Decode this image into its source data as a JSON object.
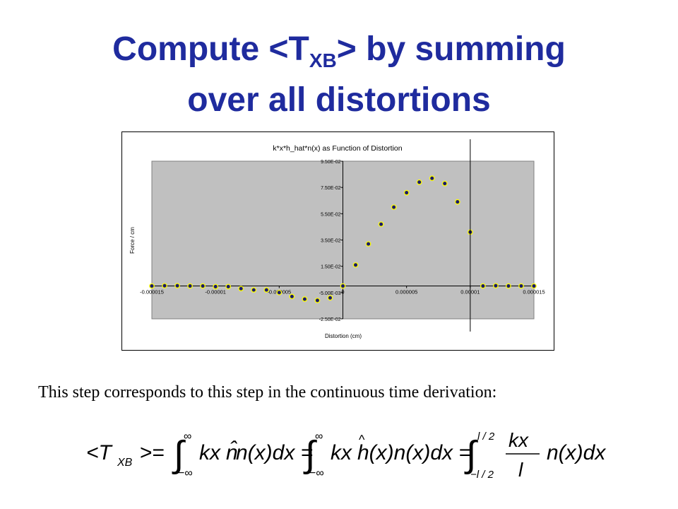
{
  "slide": {
    "title_prefix": "Compute <T",
    "title_sub": "XB",
    "title_suffix": "> by summing",
    "title_line2": "over all distortions",
    "caption": "This step corresponds to this step in the continuous time derivation:"
  },
  "chart_data": {
    "type": "scatter",
    "title": "k*x*h_hat*n(x) as Function of Distortion",
    "xlabel": "Distortion (cm)",
    "ylabel": "Force / cm",
    "xlim": [
      -1.5e-05,
      1.5e-05
    ],
    "ylim": [
      -0.025,
      0.095
    ],
    "xticks": [
      "-0.000015",
      "-0.00001",
      "-0.000005",
      "0",
      "0.000005",
      "0.00001",
      "0.000015"
    ],
    "yticks": [
      "9.50E-02",
      "7.50E-02",
      "5.50E-02",
      "3.50E-02",
      "1.50E-02",
      "-5.00E-03",
      "-2.50E-02"
    ],
    "grid": false,
    "background": "#c0c0c0",
    "marker_fill": "#1a1a6e",
    "marker_edge": "#ffff00",
    "vline_x": 1e-05,
    "x": [
      -1.5e-05,
      -1.4e-05,
      -1.3e-05,
      -1.2e-05,
      -1.1e-05,
      -1e-05,
      -9e-06,
      -8e-06,
      -7e-06,
      -6e-06,
      -5e-06,
      -4e-06,
      -3e-06,
      -2e-06,
      -1e-06,
      0,
      1e-06,
      2e-06,
      3e-06,
      4e-06,
      5e-06,
      6e-06,
      7e-06,
      8e-06,
      9e-06,
      1e-05,
      1.1e-05,
      1.2e-05,
      1.3e-05,
      1.4e-05,
      1.5e-05
    ],
    "y": [
      0,
      0.0002,
      0.0002,
      0,
      0,
      -0.0005,
      -0.0005,
      -0.002,
      -0.003,
      -0.003,
      -0.005,
      -0.008,
      -0.01,
      -0.011,
      -0.009,
      0,
      0.016,
      0.032,
      0.047,
      0.06,
      0.071,
      0.079,
      0.082,
      0.078,
      0.064,
      0.041,
      0,
      0.0002,
      0,
      0,
      0
    ]
  },
  "formula": {
    "lhs": "<T",
    "lhs_sub": "XB",
    "lhs_close": ">=",
    "int_upper_1": "∞",
    "int_lower_1": "−∞",
    "integrand_1": "kx",
    "integrand_1_fn": "n(x)dx =",
    "int_upper_2": "∞",
    "int_lower_2": "−∞",
    "integrand_2": "kx",
    "integrand_2_fn": "h(x)n(x)dx =",
    "int_upper_3": "l / 2",
    "int_lower_3": "−l / 2",
    "frac_num": "kx",
    "frac_den": "l",
    "integrand_3_fn": "n(x)dx",
    "hat": "^"
  }
}
